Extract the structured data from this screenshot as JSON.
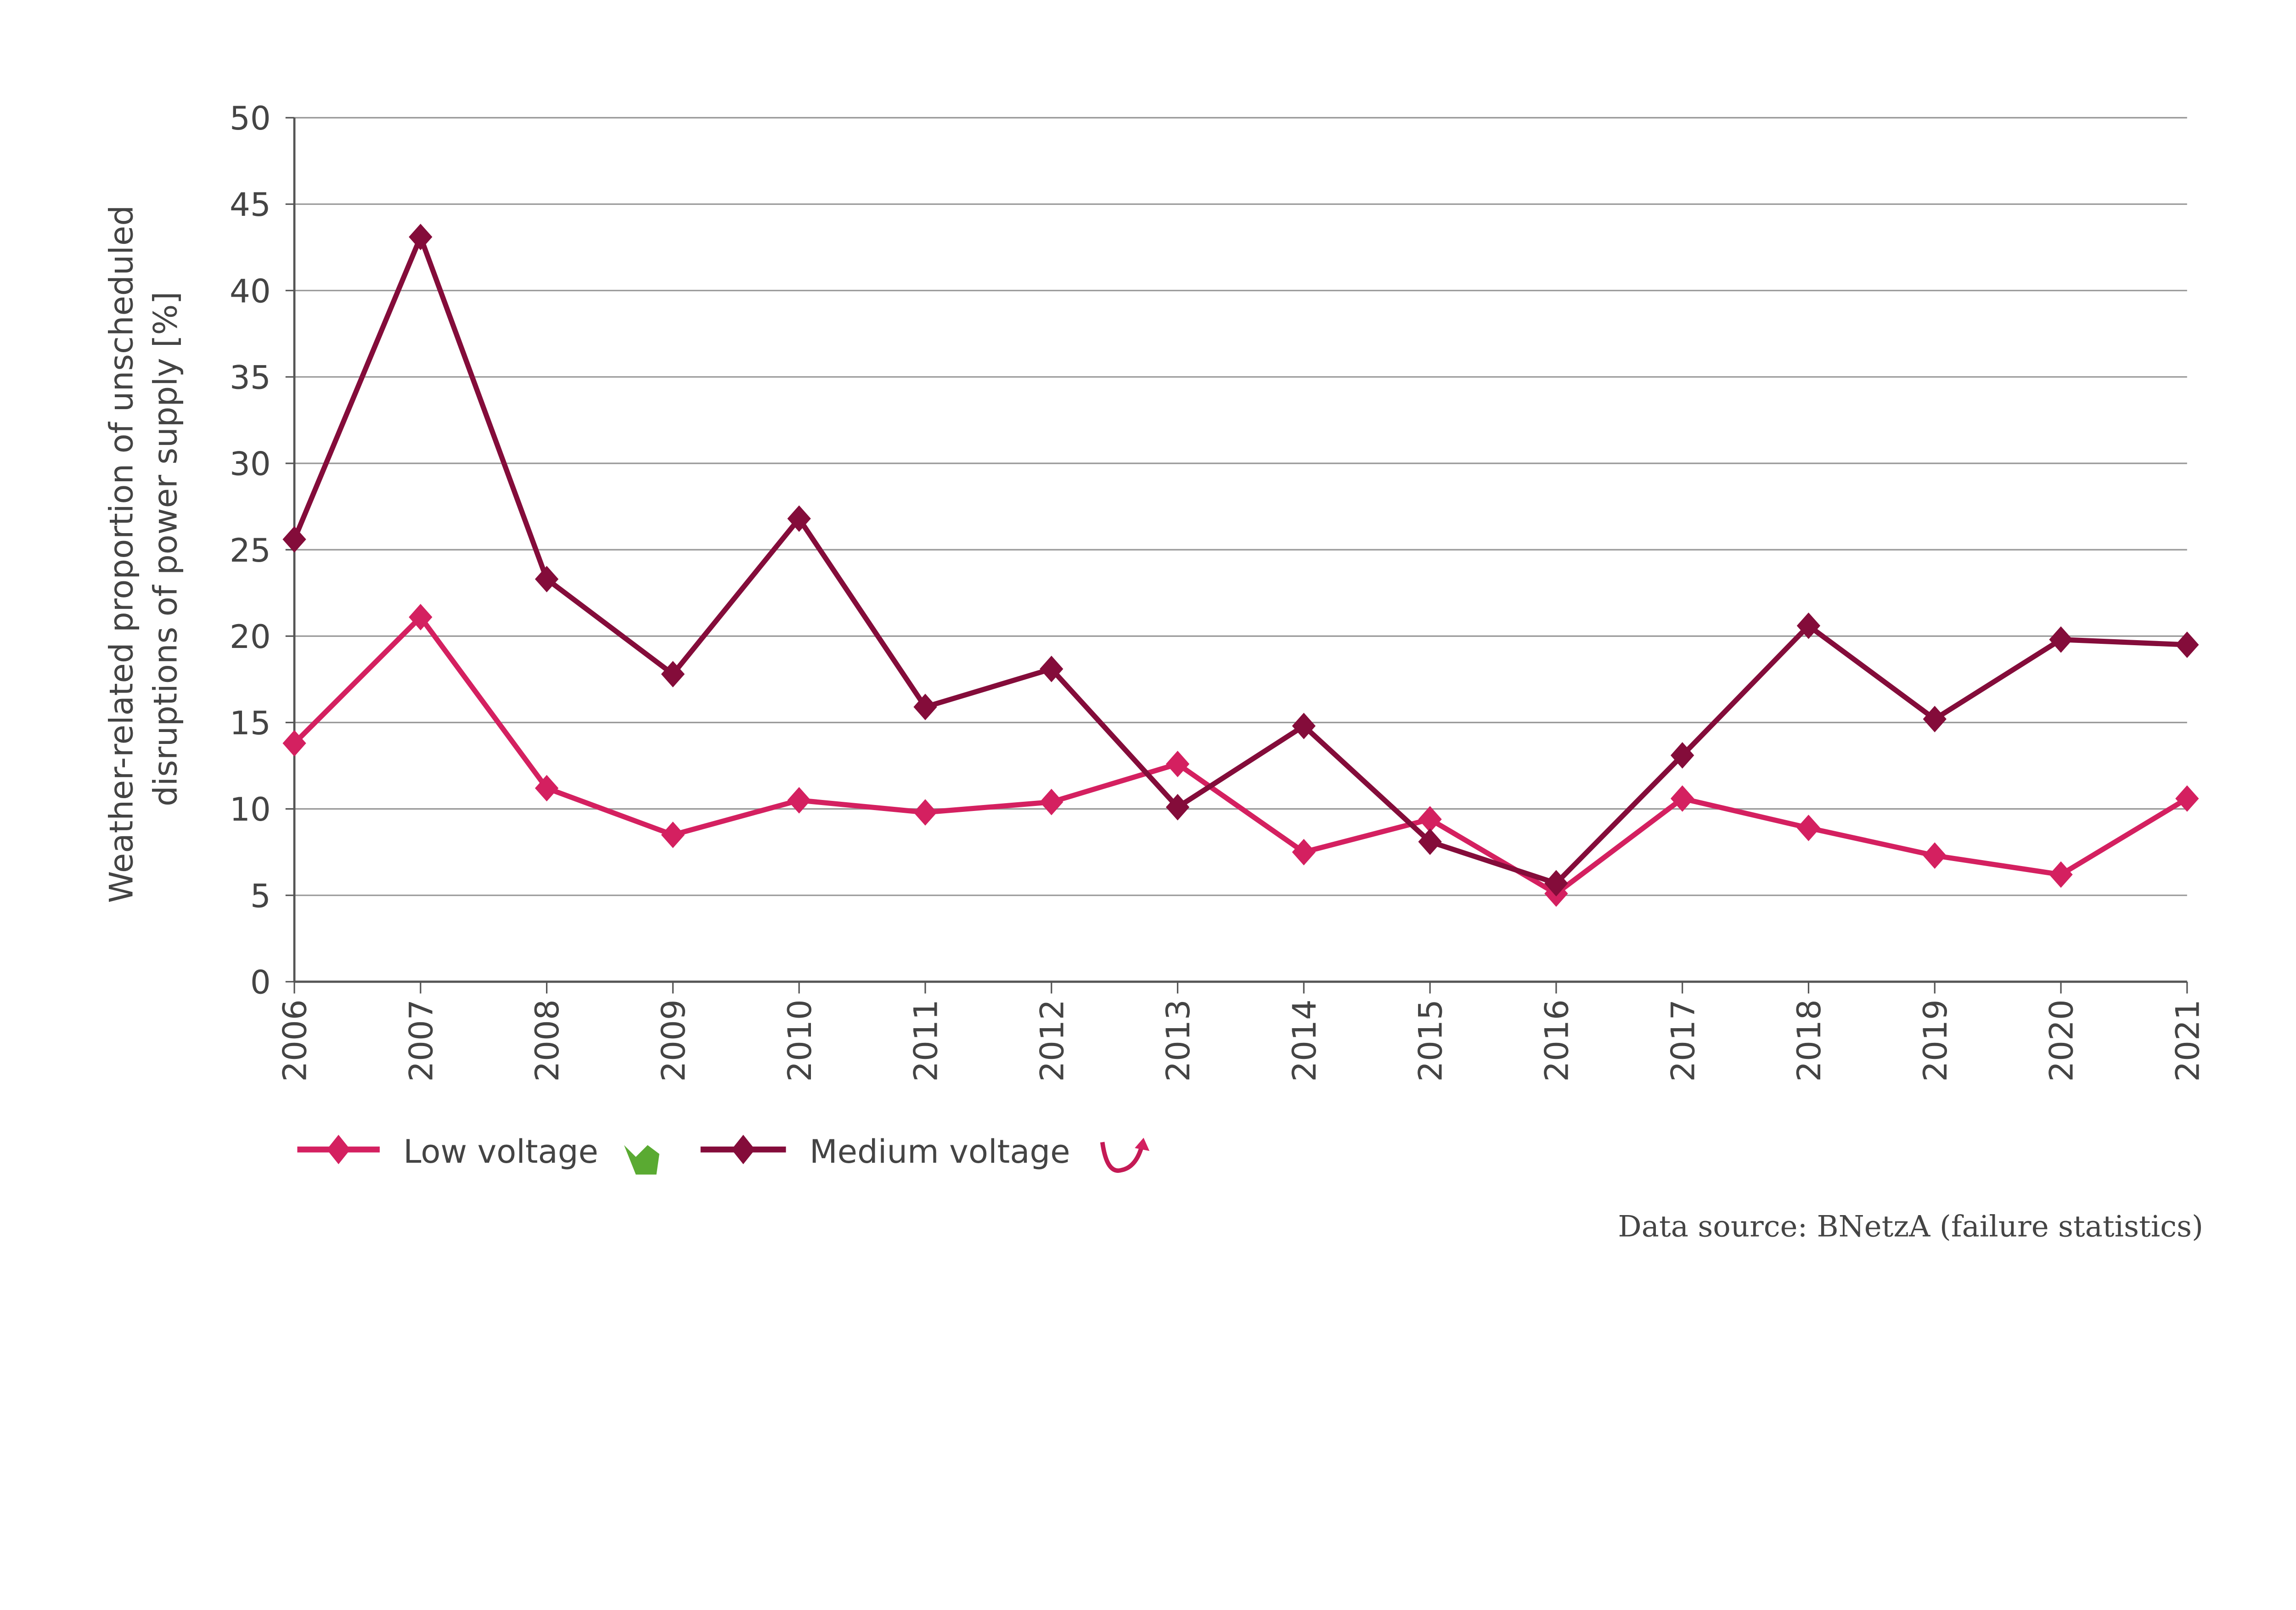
{
  "chart_data": {
    "type": "line",
    "title": "",
    "xlabel": "",
    "ylabel": "Weather-related proportion of unscheduled disruptions of power supply [%]",
    "ylabel_lines": [
      "Weather-related proportion of unscheduled",
      "disruptions of power supply [%]"
    ],
    "ylim": [
      0,
      50
    ],
    "yticks": [
      0,
      5,
      10,
      15,
      20,
      25,
      30,
      35,
      40,
      45,
      50
    ],
    "grid": true,
    "legend_position": "bottom-left",
    "x": [
      "2006",
      "2007",
      "2008",
      "2009",
      "2010",
      "2011",
      "2012",
      "2013",
      "2014",
      "2015",
      "2016",
      "2017",
      "2018",
      "2019",
      "2020",
      "2021"
    ],
    "series": [
      {
        "name": "Low voltage",
        "color": "#d42060",
        "trend_icon": "green-arrow-down-icon",
        "values": [
          13.8,
          21.1,
          11.2,
          8.5,
          10.5,
          9.8,
          10.4,
          12.6,
          7.5,
          9.4,
          5.1,
          10.6,
          8.9,
          7.3,
          6.2,
          10.6
        ]
      },
      {
        "name": "Medium voltage",
        "color": "#840c3a",
        "trend_icon": "u-turn-arrow-icon",
        "values": [
          25.6,
          43.1,
          23.3,
          17.8,
          26.8,
          15.9,
          18.1,
          10.1,
          14.8,
          8.1,
          5.7,
          13.1,
          20.6,
          15.2,
          19.8,
          19.5
        ]
      }
    ],
    "source": "Data source: BNetzA (failure statistics)"
  }
}
